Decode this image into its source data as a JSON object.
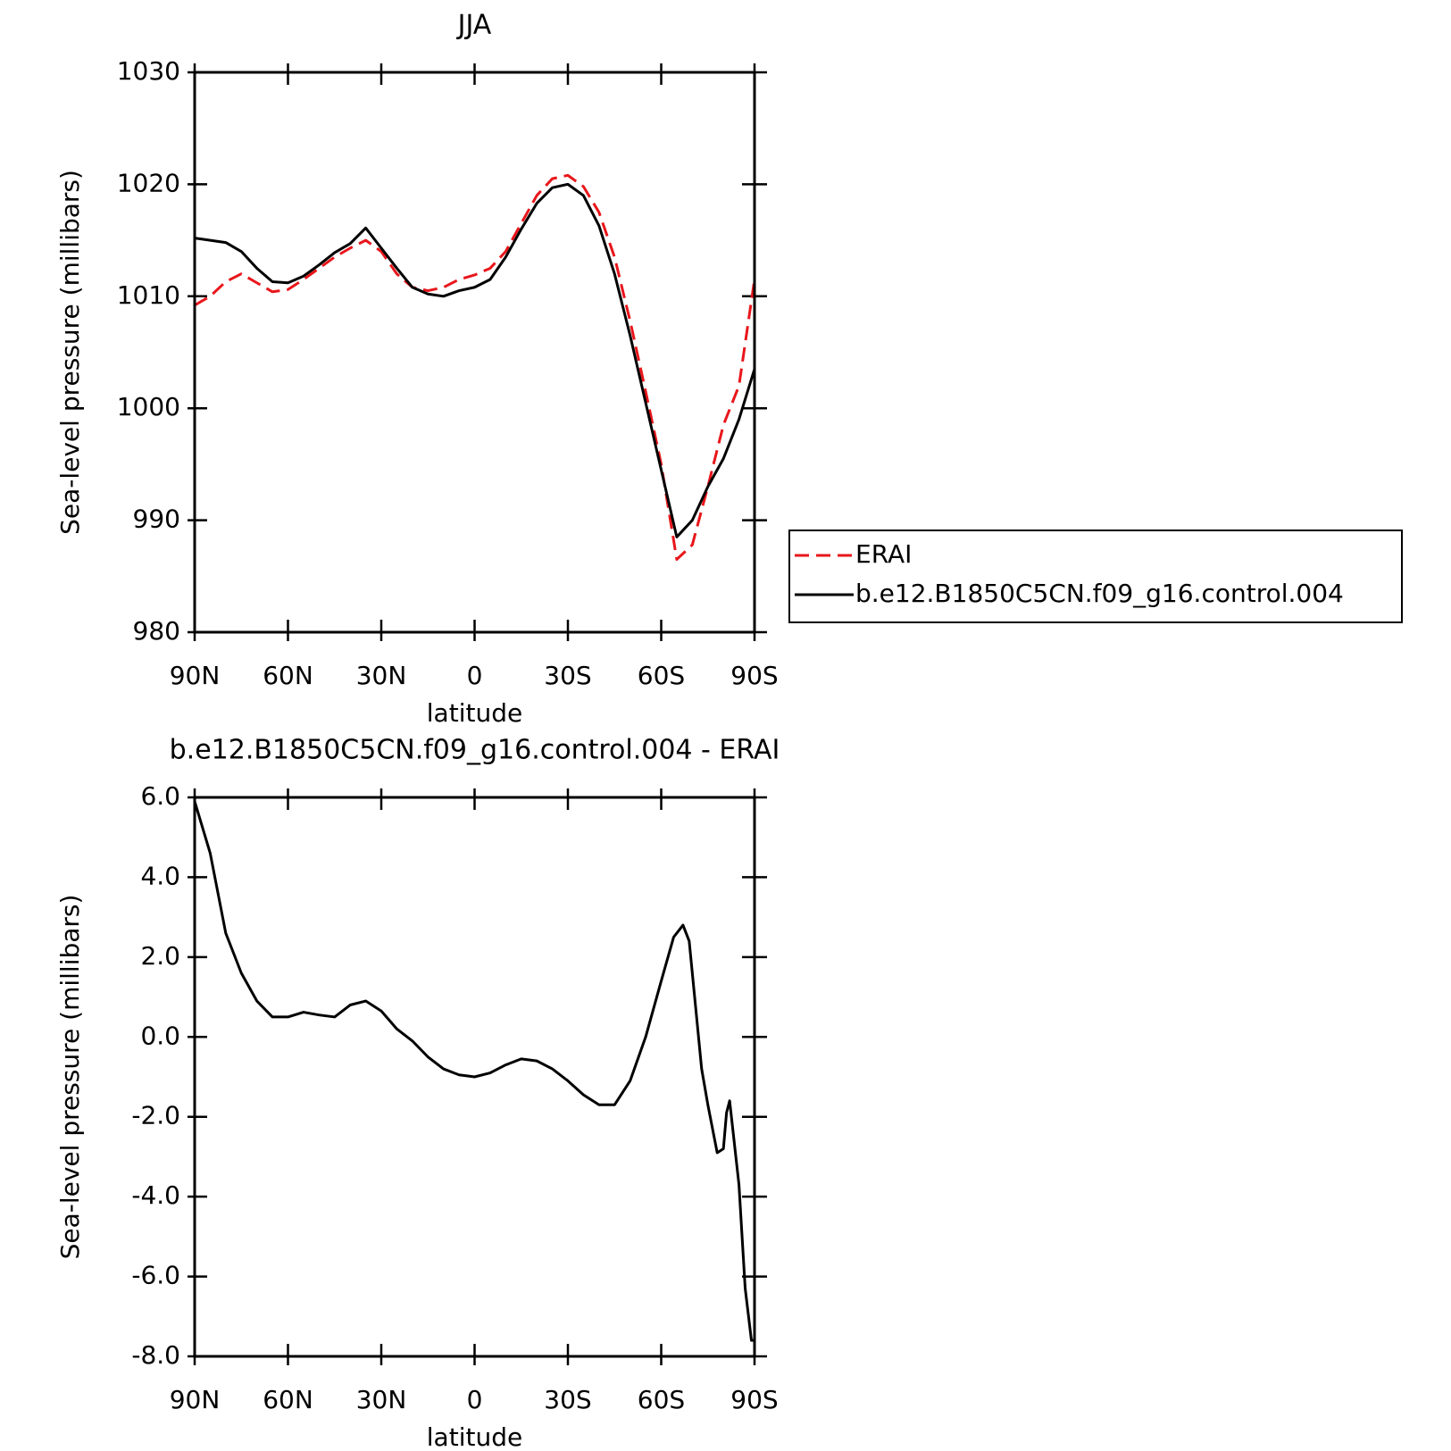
{
  "chart_data": [
    {
      "type": "line",
      "title": "JJA",
      "xlabel": "latitude",
      "ylabel": "Sea-level pressure (millibars)",
      "x": [
        90,
        85,
        80,
        75,
        70,
        65,
        60,
        55,
        50,
        45,
        40,
        35,
        30,
        25,
        20,
        15,
        10,
        5,
        0,
        -5,
        -10,
        -15,
        -20,
        -25,
        -30,
        -35,
        -40,
        -45,
        -50,
        -55,
        -60,
        -65,
        -70,
        -75,
        -80,
        -85,
        -90
      ],
      "series": [
        {
          "name": "ERAI",
          "color": "#e8161b",
          "dash": true,
          "values": [
            1009.2,
            1010.0,
            1011.3,
            1012.0,
            1011.2,
            1010.4,
            1010.6,
            1011.5,
            1012.5,
            1013.5,
            1014.3,
            1015.0,
            1014.0,
            1012.0,
            1010.8,
            1010.5,
            1010.8,
            1011.5,
            1011.9,
            1012.5,
            1014.0,
            1016.5,
            1019.0,
            1020.5,
            1020.8,
            1019.8,
            1017.5,
            1013.5,
            1007.8,
            1001.5,
            995.0,
            986.5,
            987.8,
            993.0,
            998.5,
            1002.0,
            1011.5
          ]
        },
        {
          "name": "b.e12.B1850C5CN.f09_g16.control.004",
          "color": "#000000",
          "dash": false,
          "values": [
            1015.2,
            1015.0,
            1014.8,
            1014.0,
            1012.5,
            1011.3,
            1011.2,
            1011.8,
            1012.8,
            1013.9,
            1014.7,
            1016.1,
            1014.3,
            1012.5,
            1010.8,
            1010.2,
            1010.0,
            1010.5,
            1010.8,
            1011.5,
            1013.5,
            1016.0,
            1018.3,
            1019.7,
            1020.0,
            1019.0,
            1016.3,
            1012.0,
            1006.5,
            1000.5,
            994.5,
            988.5,
            990.0,
            993.0,
            995.5,
            999.0,
            1003.5
          ]
        }
      ],
      "xlim": [
        90,
        -90
      ],
      "xticks": [
        {
          "value": 90,
          "label": "90N"
        },
        {
          "value": 60,
          "label": "60N"
        },
        {
          "value": 30,
          "label": "30N"
        },
        0,
        {
          "value": -30,
          "label": "30S"
        },
        {
          "value": -60,
          "label": "60S"
        },
        {
          "value": -90,
          "label": "90S"
        }
      ],
      "ylim": [
        980,
        1030
      ],
      "yticks": [
        980,
        990,
        1000,
        1010,
        1020,
        1030
      ],
      "legend": "right"
    },
    {
      "type": "line",
      "title": "b.e12.B1850C5CN.f09_g16.control.004 - ERAI",
      "xlabel": "latitude",
      "ylabel": "Sea-level pressure (millibars)",
      "x": [
        90,
        85,
        80,
        75,
        70,
        65,
        60,
        55,
        50,
        45,
        40,
        35,
        30,
        25,
        20,
        15,
        10,
        5,
        0,
        -5,
        -10,
        -15,
        -20,
        -25,
        -30,
        -35,
        -40,
        -45,
        -50,
        -55,
        -60,
        -64,
        -67,
        -69,
        -73,
        -75,
        -78,
        -80,
        -81,
        -82,
        -85,
        -87,
        -89,
        -90
      ],
      "series": [
        {
          "color": "#000000",
          "dash": false,
          "values": [
            5.9,
            4.6,
            2.6,
            1.6,
            0.9,
            0.5,
            0.5,
            0.62,
            0.55,
            0.5,
            0.8,
            0.9,
            0.65,
            0.2,
            -0.1,
            -0.5,
            -0.8,
            -0.95,
            -1.0,
            -0.9,
            -0.7,
            -0.55,
            -0.6,
            -0.8,
            -1.1,
            -1.45,
            -1.7,
            -1.7,
            -1.1,
            0.0,
            1.4,
            2.5,
            2.8,
            2.4,
            -0.8,
            -1.7,
            -2.9,
            -2.8,
            -1.9,
            -1.6,
            -3.7,
            -6.3,
            -7.6,
            -7.6
          ]
        }
      ],
      "xlim": [
        90,
        -90
      ],
      "xticks": [
        {
          "value": 90,
          "label": "90N"
        },
        {
          "value": 60,
          "label": "60N"
        },
        {
          "value": 30,
          "label": "30N"
        },
        0,
        {
          "value": -30,
          "label": "30S"
        },
        {
          "value": -60,
          "label": "60S"
        },
        {
          "value": -90,
          "label": "90S"
        }
      ],
      "ylim": [
        -8,
        6
      ],
      "yticks": [
        {
          "value": -8,
          "label": "-8.0"
        },
        {
          "value": -6,
          "label": "-6.0"
        },
        {
          "value": -4,
          "label": "-4.0"
        },
        {
          "value": -2,
          "label": "-2.0"
        },
        {
          "value": 0,
          "label": "0.0"
        },
        {
          "value": 2,
          "label": "2.0"
        },
        {
          "value": 4,
          "label": "4.0"
        },
        {
          "value": 6,
          "label": "6.0"
        }
      ]
    }
  ]
}
